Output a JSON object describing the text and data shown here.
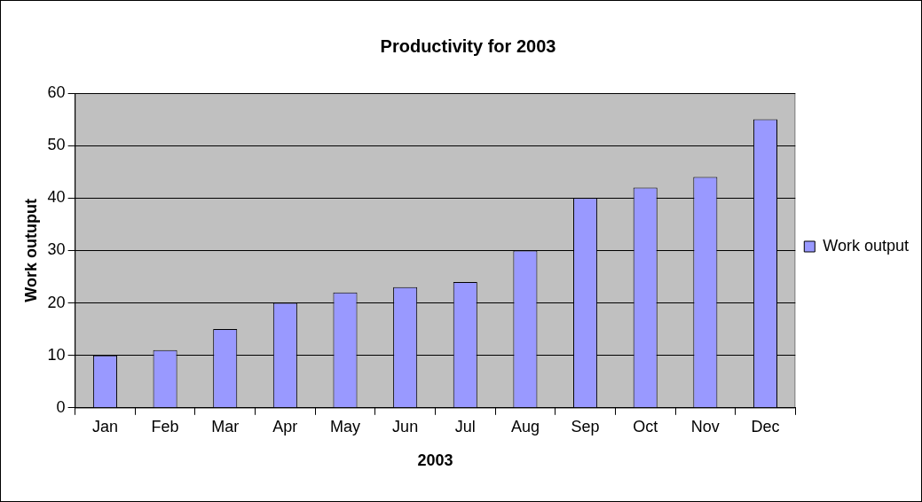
{
  "chart_data": {
    "type": "bar",
    "title": "Productivity for 2003",
    "xlabel": "2003",
    "ylabel": "Work outuput",
    "categories": [
      "Jan",
      "Feb",
      "Mar",
      "Apr",
      "May",
      "Jun",
      "Jul",
      "Aug",
      "Sep",
      "Oct",
      "Nov",
      "Dec"
    ],
    "series": [
      {
        "name": "Work output",
        "color": "#9999ff",
        "values": [
          10,
          11,
          15,
          20,
          22,
          23,
          24,
          30,
          40,
          42,
          44,
          55
        ]
      }
    ],
    "ylim": [
      0,
      60
    ],
    "yticks": [
      0,
      10,
      20,
      30,
      40,
      50,
      60
    ],
    "grid": "y",
    "legend": "right"
  }
}
